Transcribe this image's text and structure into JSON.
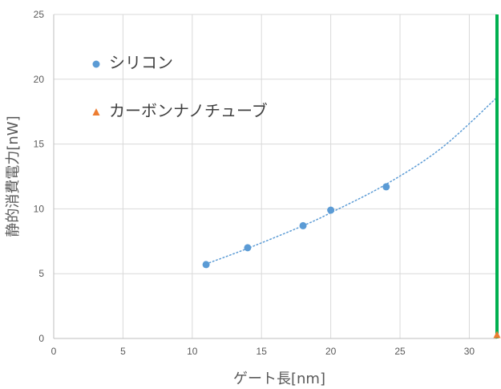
{
  "chart_data": {
    "type": "scatter",
    "xlabel": "ゲート長[nm]",
    "ylabel": "静的消費電力[nW]",
    "xlim": [
      0,
      32
    ],
    "ylim": [
      0,
      25
    ],
    "x_ticks": [
      0,
      5,
      10,
      15,
      20,
      25,
      30
    ],
    "y_ticks": [
      0,
      5,
      10,
      15,
      20,
      25
    ],
    "grid": true,
    "legend_position": "top-left",
    "series": [
      {
        "name": "シリコン",
        "marker": "circle",
        "color": "#5b9bd5",
        "points": [
          {
            "x": 11,
            "y": 5.7
          },
          {
            "x": 14,
            "y": 7.0
          },
          {
            "x": 18,
            "y": 8.7
          },
          {
            "x": 20,
            "y": 9.9
          },
          {
            "x": 24,
            "y": 11.7
          }
        ]
      },
      {
        "name": "カーボンナノチューブ",
        "marker": "triangle",
        "color": "#ed7d31",
        "points": [
          {
            "x": 32,
            "y": 0.25
          }
        ]
      }
    ],
    "trendline": {
      "series": "シリコン",
      "style": "dotted",
      "color": "#5b9bd5",
      "x_range": [
        11,
        32
      ],
      "points": [
        {
          "x": 11,
          "y": 5.75
        },
        {
          "x": 14,
          "y": 6.95
        },
        {
          "x": 18,
          "y": 8.7
        },
        {
          "x": 20,
          "y": 9.7
        },
        {
          "x": 24,
          "y": 11.9
        },
        {
          "x": 28,
          "y": 14.7
        },
        {
          "x": 32,
          "y": 18.6
        }
      ]
    },
    "reference_line": {
      "x": 32,
      "y_range": [
        0,
        25
      ],
      "color": "#00b050"
    }
  }
}
